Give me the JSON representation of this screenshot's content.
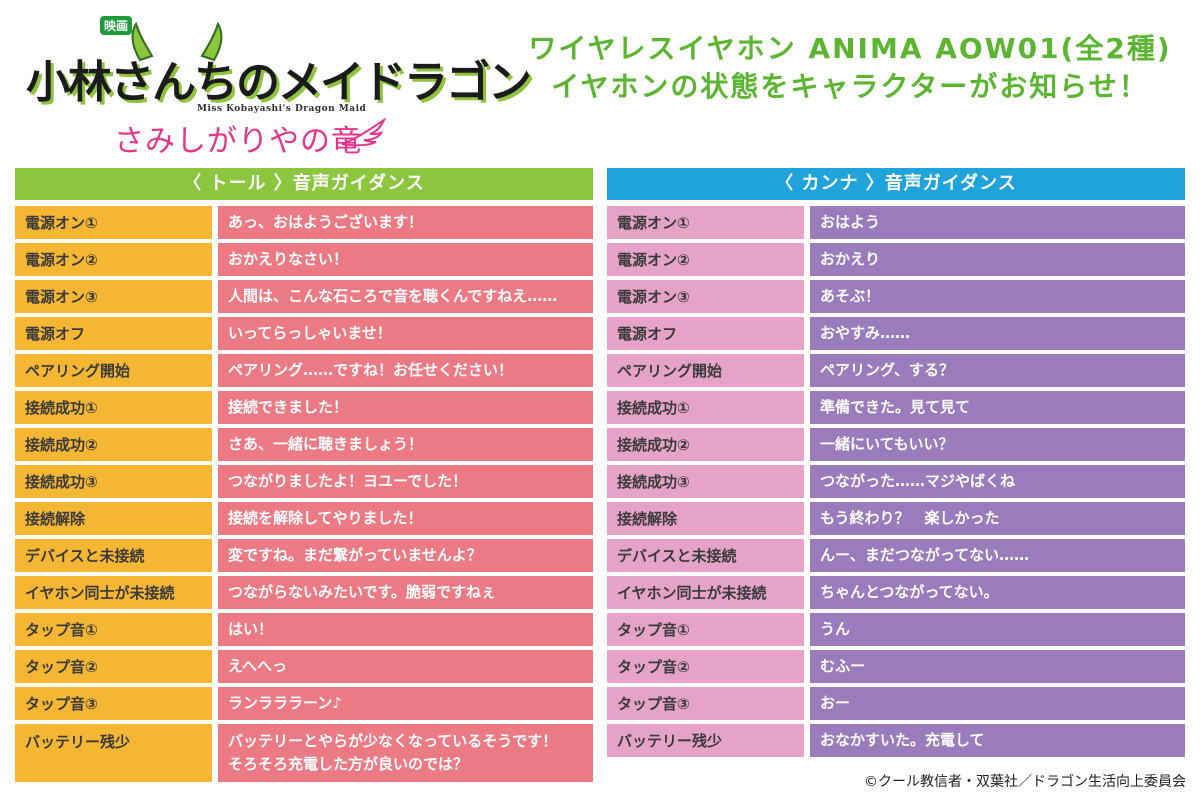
{
  "logo": {
    "eiga": "映画",
    "main": "小林さんちのメイドラゴン",
    "subtitle": "Miss Kobayashi's Dragon Maid",
    "tagline": "さみしがりやの竜"
  },
  "heading": {
    "line1": "ワイヤレスイヤホン ANIMA AOW01(全2種)",
    "line2": "イヤホンの状態をキャラクターがお知らせ！"
  },
  "tohru": {
    "header": "〈 トール 〉音声ガイダンス",
    "rows": [
      {
        "label": "電源オン①",
        "lines": [
          "あっ、おはようございます！"
        ]
      },
      {
        "label": "電源オン②",
        "lines": [
          "おかえりなさい！"
        ]
      },
      {
        "label": "電源オン③",
        "lines": [
          "人間は、こんな石ころで音を聴くんですねえ……"
        ]
      },
      {
        "label": "電源オフ",
        "lines": [
          "いってらっしゃいませ！"
        ]
      },
      {
        "label": "ペアリング開始",
        "lines": [
          "ペアリング……ですね！お任せください！"
        ]
      },
      {
        "label": "接続成功①",
        "lines": [
          "接続できました！"
        ]
      },
      {
        "label": "接続成功②",
        "lines": [
          "さあ、一緒に聴きましょう！"
        ]
      },
      {
        "label": "接続成功③",
        "lines": [
          "つながりましたよ！ヨユーでした！"
        ]
      },
      {
        "label": "接続解除",
        "lines": [
          "接続を解除してやりました！"
        ]
      },
      {
        "label": "デバイスと未接続",
        "lines": [
          "変ですね。まだ繋がっていませんよ？"
        ]
      },
      {
        "label": "イヤホン同士が未接続",
        "lines": [
          "つながらないみたいです。脆弱ですねぇ"
        ]
      },
      {
        "label": "タップ音①",
        "lines": [
          "はい！"
        ]
      },
      {
        "label": "タップ音②",
        "lines": [
          "えへへっ"
        ]
      },
      {
        "label": "タップ音③",
        "lines": [
          "ランラララーン♪"
        ]
      },
      {
        "label": "バッテリー残少",
        "lines": [
          "バッテリーとやらが少なくなっているそうです！",
          "そろそろ充電した方が良いのでは？"
        ]
      }
    ]
  },
  "kanna": {
    "header": "〈 カンナ 〉音声ガイダンス",
    "rows": [
      {
        "label": "電源オン①",
        "lines": [
          "おはよう"
        ]
      },
      {
        "label": "電源オン②",
        "lines": [
          "おかえり"
        ]
      },
      {
        "label": "電源オン③",
        "lines": [
          "あそぶ！"
        ]
      },
      {
        "label": "電源オフ",
        "lines": [
          "おやすみ……"
        ]
      },
      {
        "label": "ペアリング開始",
        "lines": [
          "ペアリング、する？"
        ]
      },
      {
        "label": "接続成功①",
        "lines": [
          "準備できた。見て見て"
        ]
      },
      {
        "label": "接続成功②",
        "lines": [
          "一緒にいてもいい？"
        ]
      },
      {
        "label": "接続成功③",
        "lines": [
          "つながった……マジやばくね"
        ]
      },
      {
        "label": "接続解除",
        "lines": [
          "もう終わり？　楽しかった"
        ]
      },
      {
        "label": "デバイスと未接続",
        "lines": [
          "んー、まだつながってない……"
        ]
      },
      {
        "label": "イヤホン同士が未接続",
        "lines": [
          "ちゃんとつながってない。"
        ]
      },
      {
        "label": "タップ音①",
        "lines": [
          "うん"
        ]
      },
      {
        "label": "タップ音②",
        "lines": [
          "むふー"
        ]
      },
      {
        "label": "タップ音③",
        "lines": [
          "おー"
        ]
      },
      {
        "label": "バッテリー残少",
        "lines": [
          "おなかすいた。充電して"
        ]
      }
    ]
  },
  "copyright": "©クール教信者・双葉社／ドラゴン生活向上委員会",
  "colors": {
    "heading": "#5cb531",
    "tohru_header": "#8cc63f",
    "tohru_label": "#f5b733",
    "tohru_line": "#ec7a85",
    "kanna_header": "#1fa3da",
    "kanna_label": "#e6a3c8",
    "kanna_line": "#9a7cbd",
    "logo_tagline": "#e2368a"
  }
}
